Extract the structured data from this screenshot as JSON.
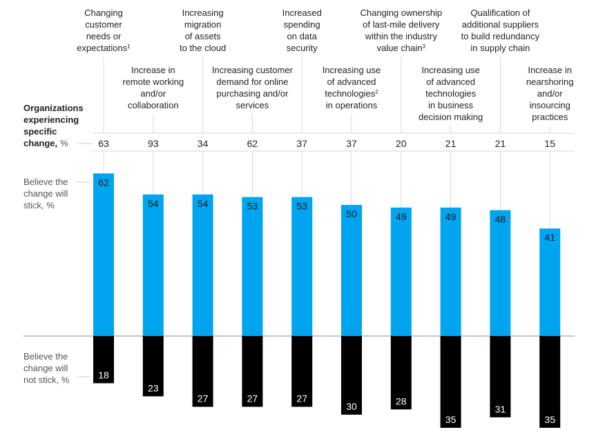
{
  "chart_data": {
    "type": "bar",
    "categories": [
      {
        "lines": [
          "Changing",
          "customer",
          "needs or",
          "expectations"
        ],
        "footnote": "1"
      },
      {
        "lines": [
          "Increase in",
          "remote working",
          "and/or",
          "collaboration"
        ],
        "footnote": ""
      },
      {
        "lines": [
          "Increasing",
          "migration",
          "of assets",
          "to the cloud"
        ],
        "footnote": ""
      },
      {
        "lines": [
          "Increasing customer",
          "demand for online",
          "purchasing and/or",
          "services"
        ],
        "footnote": ""
      },
      {
        "lines": [
          "Increased",
          "spending",
          "on data",
          "security"
        ],
        "footnote": ""
      },
      {
        "lines": [
          "Increasing use",
          "of advanced",
          "technologies",
          "in operations"
        ],
        "footnote": "2",
        "footnote_line": 2
      },
      {
        "lines": [
          "Changing ownership",
          "of last-mile delivery",
          "within the industry",
          "value chain"
        ],
        "footnote": "3"
      },
      {
        "lines": [
          "Increasing use",
          "of advanced",
          "technologies",
          "in business",
          "decision making"
        ],
        "footnote": ""
      },
      {
        "lines": [
          "Qualification of",
          "additional suppliers",
          "to build redundancy",
          "in supply chain"
        ],
        "footnote": ""
      },
      {
        "lines": [
          "Increase in",
          "nearshoring",
          "and/or",
          "insourcing",
          "practices"
        ],
        "footnote": ""
      }
    ],
    "experiencing": {
      "label_bold": [
        "Organizations",
        "experiencing",
        "specific",
        "change,"
      ],
      "label_unit": "%",
      "values": [
        63,
        93,
        34,
        62,
        37,
        37,
        20,
        21,
        21,
        15
      ]
    },
    "series": [
      {
        "name": "Believe the change will stick, %",
        "label_lines": [
          "Believe the",
          "change will",
          "stick, %"
        ],
        "values": [
          62,
          54,
          54,
          53,
          53,
          50,
          49,
          49,
          48,
          41
        ],
        "color": "#00a4ef",
        "label_color": "#1a1a1a"
      },
      {
        "name": "Believe the change will not stick, %",
        "label_lines": [
          "Believe the",
          "change will",
          "not stick, %"
        ],
        "values": [
          18,
          23,
          27,
          27,
          27,
          30,
          28,
          35,
          31,
          35
        ],
        "color": "#000000",
        "label_color": "#ffffff"
      }
    ],
    "grid": false
  }
}
